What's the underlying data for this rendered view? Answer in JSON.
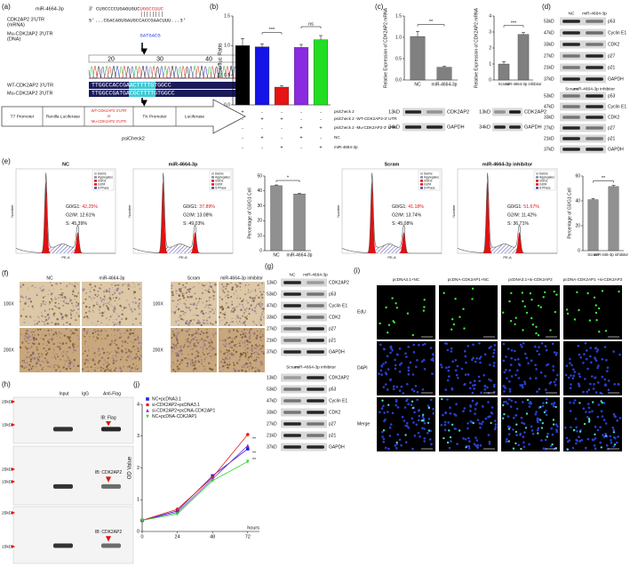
{
  "labels": [
    "(a)",
    "(b)",
    "(c)",
    "(d)",
    "(e)",
    "(f)",
    "(g)",
    "(h)",
    "(i)",
    "(j)"
  ],
  "panel_a": {
    "mir_name": "miR-4664-3p",
    "mir_end": "3'",
    "mir_seq": "CUGCCCCUGAGUGUC",
    "mir_seed": "UGGCCUUC",
    "utr_name": "CDK2AP2 3'UTR",
    "utr_type": "(mRNA)",
    "utr_seq": "5'...CGACAGUGAUGCCACCGAACUUU...3'",
    "mu_name": "Mu-CDK2AP2 3'UTR",
    "mu_type": "(DNA)",
    "mu_seq": "GATGACG",
    "positions": [
      "20",
      "30",
      "40"
    ],
    "wt_label": "WT-CDK2AP2 3'UTR",
    "wt_seq": "TTGGCCACCGAACTTTTGTGGCC",
    "mu_label": "Mu-CDK2AP2 3'UTR",
    "mu_seq2": "TTGGCCGATGACGCTTTTGTGGCC",
    "construct": [
      "T7 Promoter",
      "Renilla Luciferase",
      "WT-CDK2AP2 3'UTR",
      "or",
      "Mu-CDK2AP2 3'UTR",
      "TK Promoter",
      "Luciferase"
    ],
    "vector": "psiCheck2"
  },
  "chart_data": [
    {
      "type": "bar",
      "ylabel": "Rluc/fluc Ratio",
      "values": [
        1.0,
        0.98,
        0.3,
        0.97,
        1.1
      ],
      "errors": [
        0.12,
        0.05,
        0.02,
        0.05,
        0.07
      ],
      "colors": [
        "#000000",
        "#1414e6",
        "#e61414",
        "#8a2be2",
        "#22dd22"
      ],
      "ylim": [
        0,
        1.5
      ],
      "yticks": [
        {
          "value": 0,
          "label": "0.0"
        },
        0.5,
        {
          "value": 1,
          "label": "1.0"
        },
        1.5
      ],
      "annotations": [
        "***",
        "ns"
      ],
      "conditions": [
        {
          "name": "psiCheck 2",
          "signs": [
            "+",
            "-",
            "-",
            "-",
            "-"
          ]
        },
        {
          "name": "psiCheck 2 -WT-CDK2AP2-3' UTR",
          "signs": [
            "-",
            "+",
            "+",
            "-",
            "-"
          ]
        },
        {
          "name": "psiCheck 2 -Mu-CDK2AP2-3' UTR",
          "signs": [
            "-",
            "-",
            "-",
            "+",
            "+"
          ]
        },
        {
          "name": "NC",
          "signs": [
            "-",
            "+",
            "-",
            "+",
            "-"
          ]
        },
        {
          "name": "miR-4664-3p",
          "signs": [
            "-",
            "-",
            "+",
            "-",
            "+"
          ]
        }
      ]
    },
    {
      "type": "bar",
      "ylabel": "Relative Expression of CDK2AP2 mRNA",
      "categories": [
        "NC",
        "miR-4664-3p"
      ],
      "values": [
        1.02,
        0.3
      ],
      "errors": [
        0.12,
        0.02
      ],
      "colors": [
        "#808080",
        "#808080"
      ],
      "ylim": [
        0,
        1.5
      ],
      "yticks": [
        {
          "value": 0,
          "label": "0.0"
        },
        0.5,
        {
          "value": 1,
          "label": "1.0"
        },
        1.5
      ],
      "annotations": [
        "**"
      ],
      "blot": {
        "markers": [
          "13kD",
          "34kD"
        ],
        "proteins": [
          "CDK2AP2",
          "GAPDH"
        ]
      }
    },
    {
      "type": "bar",
      "ylabel": "Relative Expression of CDK2AP2 mRNA",
      "categories": [
        "Scram",
        "miR-4664-3p inhibitor"
      ],
      "values": [
        1.0,
        2.85
      ],
      "errors": [
        0.15,
        0.12
      ],
      "colors": [
        "#808080",
        "#808080"
      ],
      "ylim": [
        0,
        4
      ],
      "yticks": [
        0,
        1,
        2,
        3,
        4
      ],
      "annotations": [
        "***"
      ],
      "blot": {
        "markers": [
          "13kD",
          "34kD"
        ],
        "proteins": [
          "CDK2AP2",
          "GAPDH"
        ]
      }
    },
    {
      "type": "bar",
      "ylabel": "Percentage of G0/G1 Cell",
      "categories": [
        "NC",
        "miR-4664-3p"
      ],
      "values": [
        43.5,
        38
      ],
      "errors": [
        0.5,
        0.3
      ],
      "colors": [
        "#909090",
        "#909090"
      ],
      "ylim": [
        0,
        50
      ],
      "yticks": [
        0,
        10,
        20,
        30,
        40,
        50
      ],
      "annotations": [
        "*"
      ]
    },
    {
      "type": "bar",
      "ylabel": "Percentage of G0/G1 Cell",
      "categories": [
        "Scram",
        "miR-446-3p inhibitor"
      ],
      "values": [
        41,
        51.5
      ],
      "errors": [
        1,
        1
      ],
      "colors": [
        "#909090",
        "#909090"
      ],
      "ylim": [
        0,
        60
      ],
      "yticks": [
        0,
        20,
        40,
        60
      ],
      "annotations": [
        "**"
      ]
    },
    {
      "type": "line",
      "ylabel": "OD Value",
      "xlabel": "hours",
      "x": [
        0,
        24,
        48,
        72
      ],
      "xlim": [
        0,
        80
      ],
      "xticks": [
        0,
        24,
        48,
        72
      ],
      "ylim": [
        0,
        4
      ],
      "yticks": [
        0,
        1,
        2,
        3,
        4
      ],
      "series": [
        {
          "name": "NC+pcDNA3.1",
          "color": "#2020e6",
          "marker": "square",
          "values": [
            0.35,
            0.65,
            1.75,
            2.6
          ]
        },
        {
          "name": "si-CDK2AP2+pcDNA3.1",
          "color": "#e62020",
          "marker": "circle",
          "values": [
            0.35,
            0.7,
            1.7,
            3.05
          ]
        },
        {
          "name": "si-CDK2AP2+pcDNA-CDK2AP1",
          "color": "#8030c0",
          "marker": "triangle",
          "values": [
            0.35,
            0.6,
            1.65,
            2.7
          ]
        },
        {
          "name": "NC+pcDNA-CDK2AP1",
          "color": "#30d830",
          "marker": "triangle-down",
          "values": [
            0.35,
            0.55,
            1.6,
            2.2
          ]
        }
      ],
      "annotations": [
        "**",
        "**",
        "**"
      ]
    }
  ],
  "panel_d": {
    "blots": [
      {
        "headers": [
          "NC",
          "miR-4664-3p"
        ],
        "rows": [
          {
            "kd": "53kD",
            "protein": "p53"
          },
          {
            "kd": "47kD",
            "protein": "Cyclin E1"
          },
          {
            "kd": "33kD",
            "protein": "CDK2"
          },
          {
            "kd": "27kD",
            "protein": "p27"
          },
          {
            "kd": "21kD",
            "protein": "p21"
          },
          {
            "kd": "37kD",
            "protein": "GAPDH"
          }
        ]
      },
      {
        "headers": [
          "Scram",
          "miR-4664-3p inhibitor"
        ],
        "rows": [
          {
            "kd": "53kD",
            "protein": "p53"
          },
          {
            "kd": "47kD",
            "protein": "Cyclin E1"
          },
          {
            "kd": "33kD",
            "protein": "CDK2"
          },
          {
            "kd": "27kD",
            "protein": "p27"
          },
          {
            "kd": "21kD",
            "protein": "p21"
          },
          {
            "kd": "37kD",
            "protein": "GAPDH"
          }
        ]
      }
    ]
  },
  "panel_e": {
    "legend": [
      "Debris",
      "Aggregates",
      "G0/G1",
      "G2/M",
      "S-Phase"
    ],
    "xlabel": "PE-A",
    "ylabel": "Number",
    "hists": [
      {
        "title": "NC",
        "g1_label": "G0/G1:",
        "g1": "42.25%",
        "g2m": "G2/M: 12.61%",
        "s": "S: 45.39%"
      },
      {
        "title": "miR-4664-3p",
        "g1_label": "G0/G1:",
        "g1": "37.89%",
        "g2m": "G2/M: 13.08%",
        "s": "S: 49.03%"
      },
      {
        "title": "Scram",
        "g1_label": "G0/G1:",
        "g1": "41.18%",
        "g2m": "G2/M: 13.74%",
        "s": "S: 45.08%"
      },
      {
        "title": "miR-4664-3p inhibitor",
        "g1_label": "G0/G1:",
        "g1": "51.67%",
        "g2m": "G2/M: 11.42%",
        "s": "S: 36.71%"
      }
    ]
  },
  "panel_f": {
    "columns": [
      "NC",
      "miR-4664-3p",
      "Scram",
      "miR-4664-3p inhibitor"
    ],
    "rows": [
      "100X",
      "200X"
    ]
  },
  "panel_g": {
    "blots": [
      {
        "headers": [
          "NC",
          "miR-4664-3p"
        ],
        "rows": [
          {
            "kd": "13kD",
            "protein": "CDK2AP2"
          },
          {
            "kd": "53kD",
            "protein": "p53"
          },
          {
            "kd": "47kD",
            "protein": "Cyclin E1"
          },
          {
            "kd": "33kD",
            "protein": "CDK2"
          },
          {
            "kd": "27kD",
            "protein": "p27"
          },
          {
            "kd": "21kD",
            "protein": "p21"
          },
          {
            "kd": "37kD",
            "protein": "GAPDH"
          }
        ]
      },
      {
        "headers": [
          "Scram",
          "miR-4664-3p inhibitor"
        ],
        "rows": [
          {
            "kd": "13kD",
            "protein": "CDK2AP2"
          },
          {
            "kd": "53kD",
            "protein": "p53"
          },
          {
            "kd": "47kD",
            "protein": "Cyclin E1"
          },
          {
            "kd": "33kD",
            "protein": "CDK2"
          },
          {
            "kd": "27kD",
            "protein": "p27"
          },
          {
            "kd": "21kD",
            "protein": "p21"
          },
          {
            "kd": "37kD",
            "protein": "GAPDH"
          }
        ]
      }
    ]
  },
  "panel_h": {
    "lanes": [
      "Input",
      "IgG",
      "Anti-Flag"
    ],
    "blots": [
      {
        "markers": [
          "25kD",
          "15kD"
        ],
        "ib": "IB: Flag"
      },
      {
        "markers": [
          "25kD",
          "15kD"
        ],
        "ib": "IB: CDK2AP2"
      },
      {
        "markers": [
          "25kD",
          "15kD"
        ],
        "ib": "IB: CDK2AP2"
      }
    ]
  },
  "panel_i": {
    "columns": [
      "pcDNA3.1+NC",
      "pcDNA-CDK2AP1+NC",
      "pcDNA3.1+si-CDK2AP2",
      "pcDNA-CDK2AP1 +si-CDK2AP2"
    ],
    "rows": [
      "EdU",
      "DAPI",
      "Merge"
    ]
  }
}
